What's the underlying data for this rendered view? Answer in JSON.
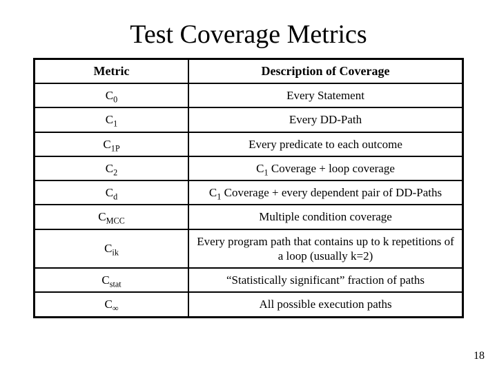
{
  "title": "Test Coverage Metrics",
  "page_number": "18",
  "table": {
    "headers": {
      "metric": "Metric",
      "description": "Description of Coverage"
    },
    "col_widths_pct": {
      "metric": 36,
      "description": 64
    },
    "border_color": "#000000",
    "rows": [
      {
        "metric_base": "C",
        "metric_sub": "0",
        "description": "Every Statement"
      },
      {
        "metric_base": "C",
        "metric_sub": "1",
        "description": "Every DD-Path"
      },
      {
        "metric_base": "C",
        "metric_sub": "1P",
        "description": "Every predicate to each outcome"
      },
      {
        "metric_base": "C",
        "metric_sub": "2",
        "description_pre": "C",
        "description_sub": "1",
        "description_post": " Coverage + loop coverage"
      },
      {
        "metric_base": "C",
        "metric_sub": "d",
        "description_pre": "C",
        "description_sub": "1",
        "description_post": " Coverage + every dependent pair of DD-Paths"
      },
      {
        "metric_base": "C",
        "metric_sub": "MCC",
        "description": "Multiple condition coverage"
      },
      {
        "metric_base": "C",
        "metric_sub": "ik",
        "description": "Every program path that contains up to k repetitions of a loop (usually k=2)"
      },
      {
        "metric_base": "C",
        "metric_sub": "stat",
        "description": "“Statistically significant” fraction of paths"
      },
      {
        "metric_base": "C",
        "metric_sub": "∞",
        "description": "All possible execution paths"
      }
    ]
  },
  "style": {
    "font_family": "Times New Roman",
    "title_fontsize_pt": 38,
    "header_fontsize_pt": 18,
    "cell_fontsize_pt": 17,
    "background_color": "#ffffff",
    "text_color": "#000000"
  }
}
